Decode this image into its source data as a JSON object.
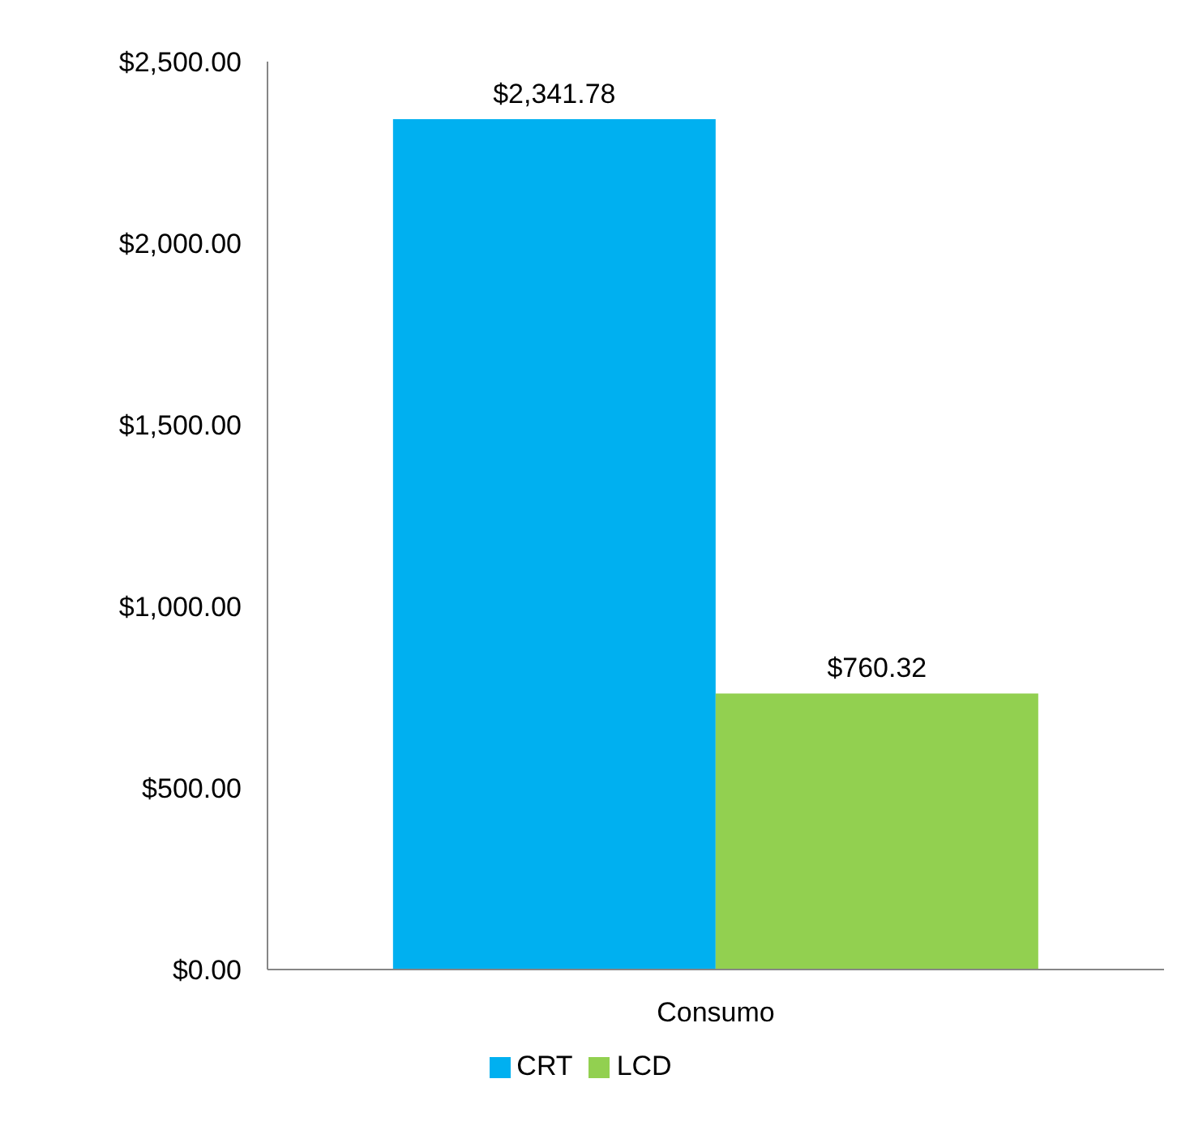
{
  "chart_data": {
    "type": "bar",
    "categories": [
      "Consumo"
    ],
    "series": [
      {
        "name": "CRT",
        "color": "#00b0f0",
        "values": [
          2341.78
        ],
        "value_labels": [
          "$2,341.78"
        ]
      },
      {
        "name": "LCD",
        "color": "#92d050",
        "values": [
          760.32
        ],
        "value_labels": [
          "$760.32"
        ]
      }
    ],
    "ylim": [
      0,
      2500
    ],
    "yticks": [
      {
        "value": 0,
        "label": "$0.00"
      },
      {
        "value": 500,
        "label": "$500.00"
      },
      {
        "value": 1000,
        "label": "$1,000.00"
      },
      {
        "value": 1500,
        "label": "$1,500.00"
      },
      {
        "value": 2000,
        "label": "$2,000.00"
      },
      {
        "value": 2500,
        "label": "$2,500.00"
      }
    ],
    "grid": false,
    "legend": "bottom"
  }
}
